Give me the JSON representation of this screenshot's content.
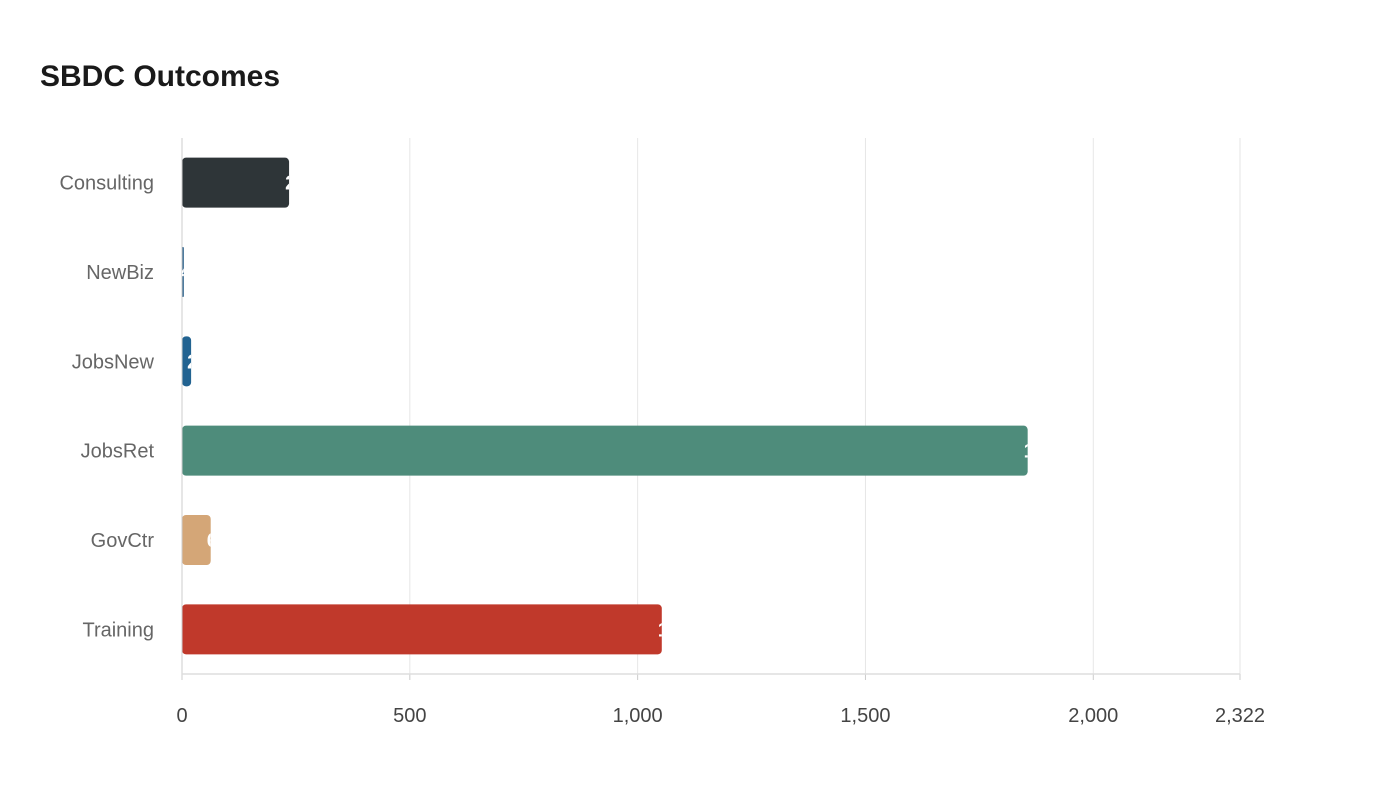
{
  "chart_data": {
    "type": "bar",
    "orientation": "horizontal",
    "title": "SBDC Outcomes",
    "xlabel": "",
    "ylabel": "",
    "categories": [
      "Consulting",
      "NewBiz",
      "JobsNew",
      "JobsRet",
      "GovCtr",
      "Training"
    ],
    "values": [
      235,
      4,
      20,
      1856,
      63,
      1053
    ],
    "colors": [
      "#2e3538",
      "#2b5f8a",
      "#226391",
      "#4e8c7b",
      "#d4a677",
      "#c0392b"
    ],
    "xlim": [
      0,
      2322
    ],
    "x_ticks": [
      0,
      500,
      1000,
      1500,
      2000,
      2322
    ],
    "x_tick_labels": [
      "0",
      "500",
      "1,000",
      "1,500",
      "2,000",
      "2,322"
    ],
    "grid": true,
    "legend": "none"
  }
}
